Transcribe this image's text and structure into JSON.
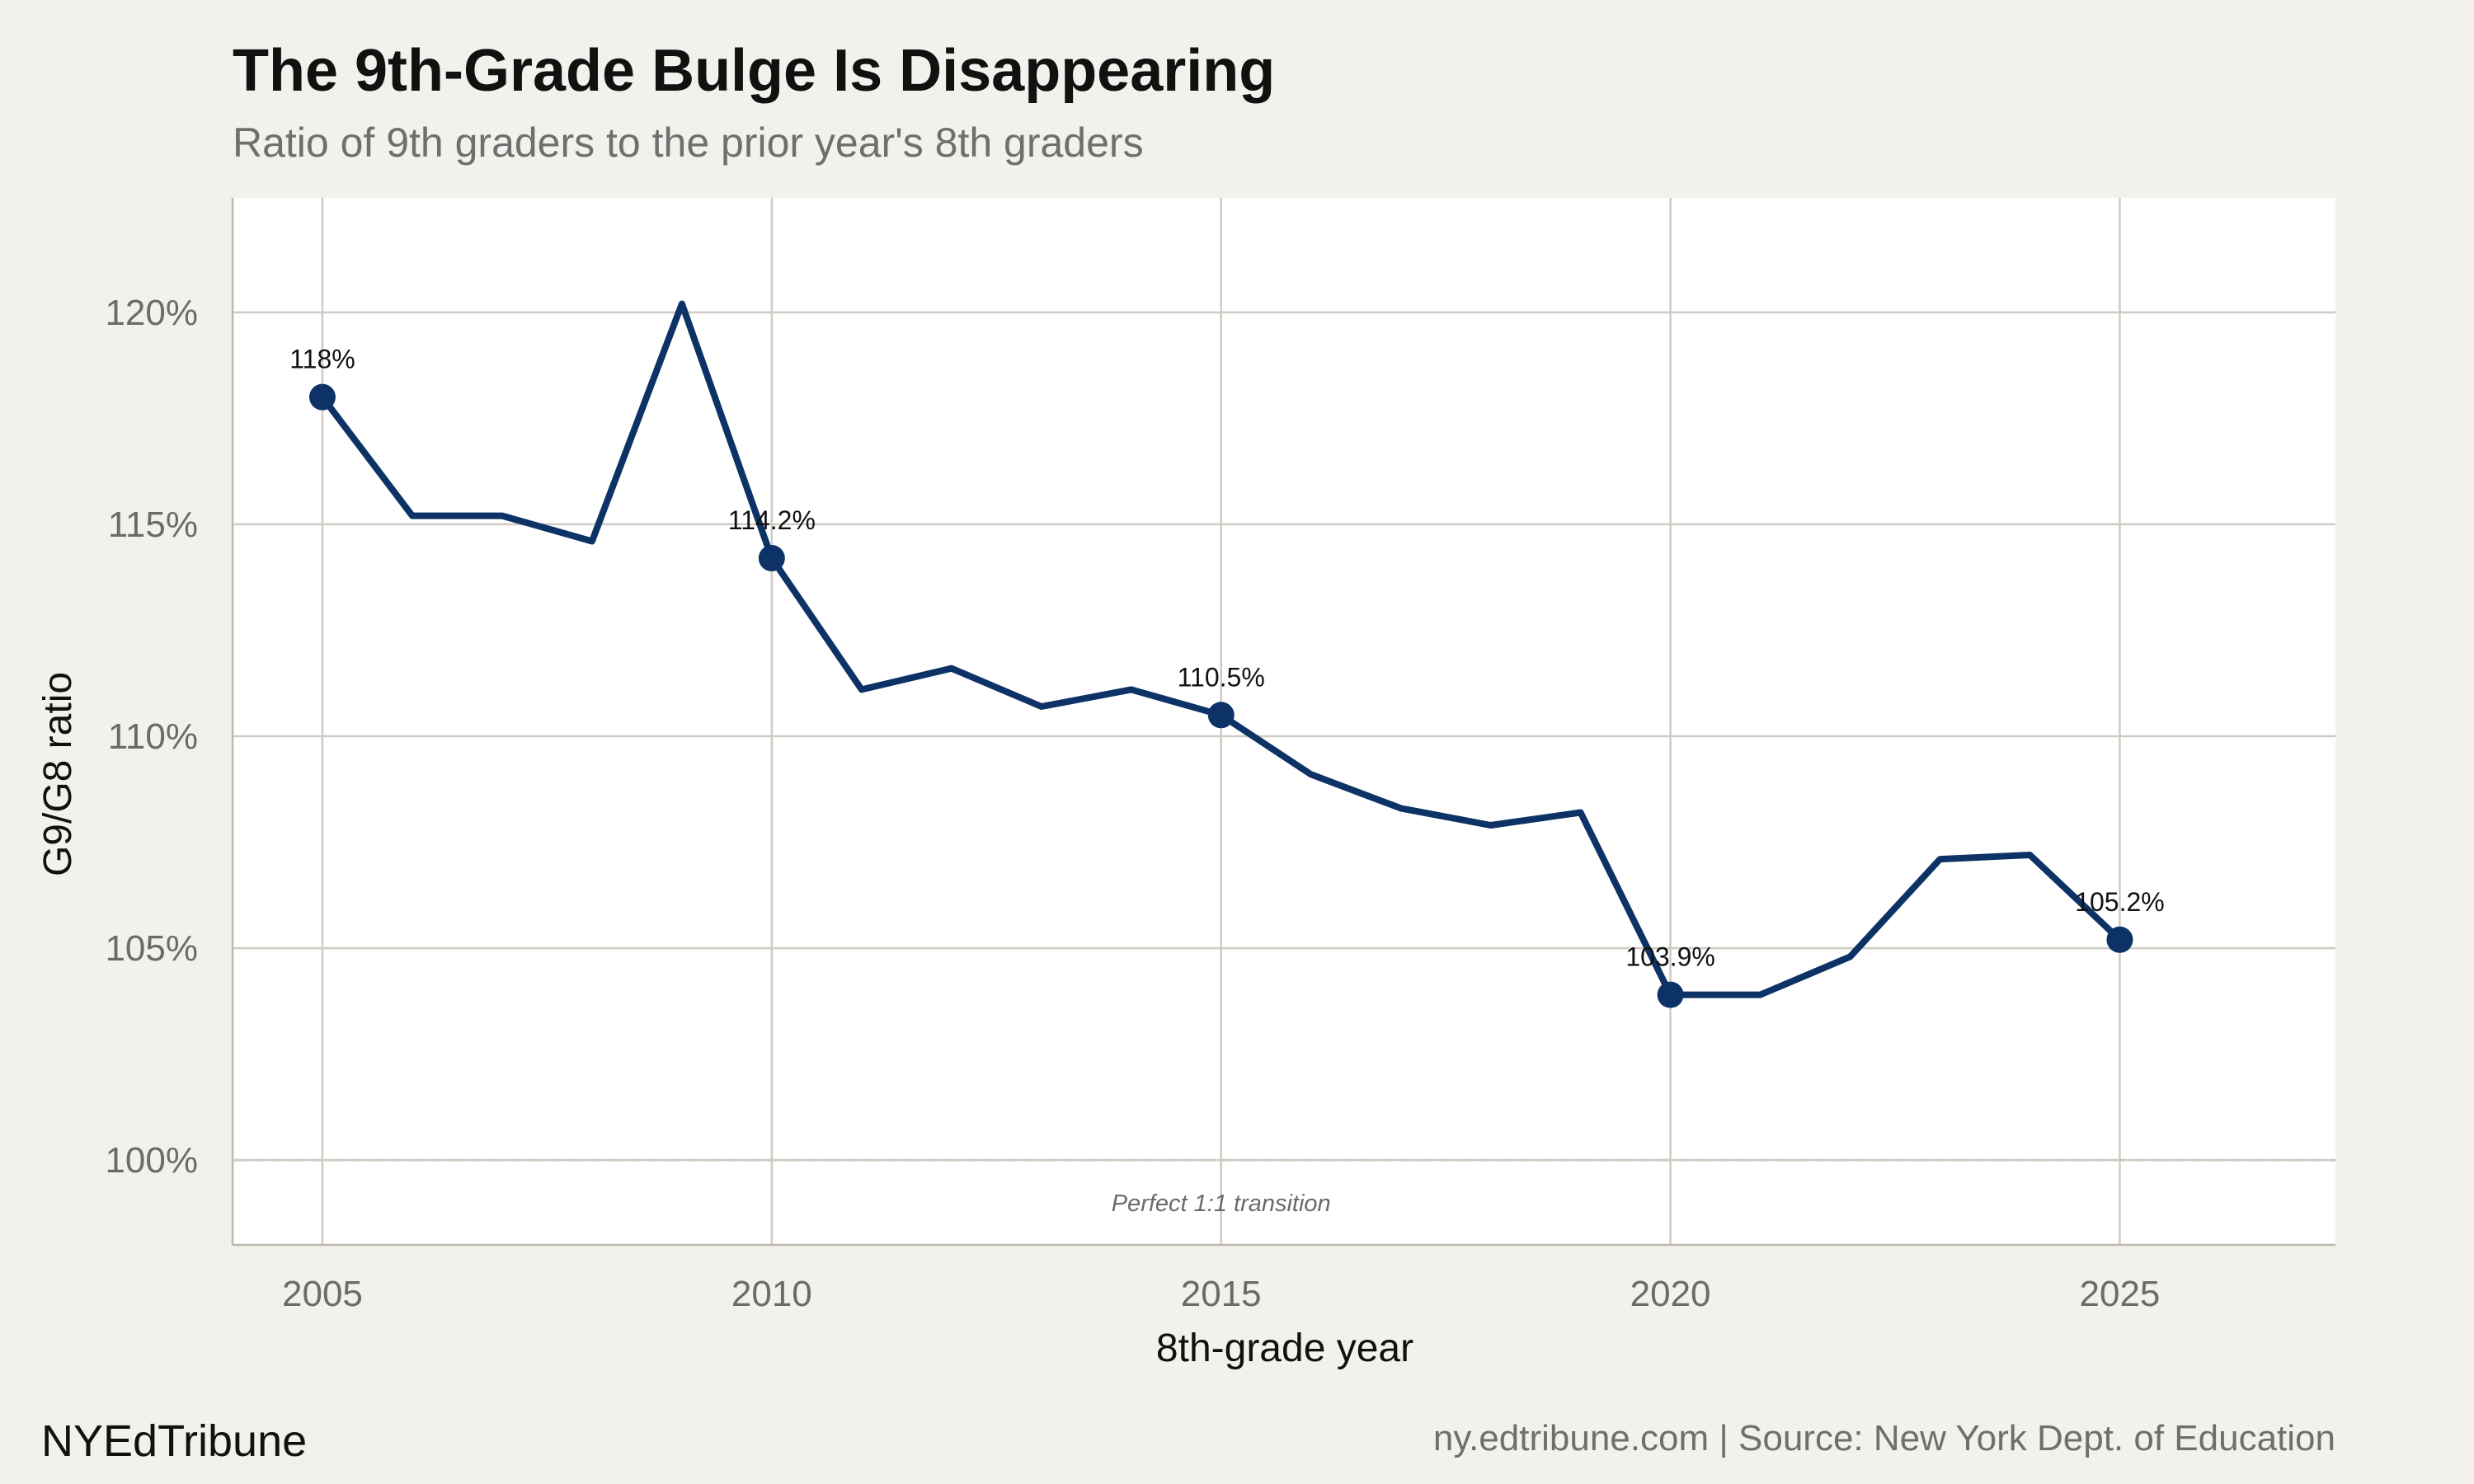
{
  "title": "The 9th-Grade Bulge Is Disappearing",
  "subtitle": "Ratio of 9th graders to the prior year's 8th graders",
  "footer": {
    "brand": "NYEdTribune",
    "source": "ny.edtribune.com | Source: New York Dept. of Education"
  },
  "colors": {
    "line": "#0d3366",
    "grid": "#cfcbc2",
    "panel": "#ffffff",
    "background": "#f3f1ec",
    "reference": "#cfc9bd"
  },
  "chart_data": {
    "type": "line",
    "title": "The 9th-Grade Bulge Is Disappearing",
    "subtitle": "Ratio of 9th graders to the prior year's 8th graders",
    "xlabel": "8th-grade year",
    "ylabel": "G9/G8 ratio",
    "xlim": [
      2004,
      2027.4
    ],
    "ylim": [
      98,
      122.7
    ],
    "x_ticks": [
      2005,
      2010,
      2015,
      2020,
      2025
    ],
    "x_tick_labels": [
      "2005",
      "2010",
      "2015",
      "2020",
      "2025"
    ],
    "y_ticks": [
      100,
      105,
      110,
      115,
      120
    ],
    "y_tick_labels": [
      "100%",
      "105%",
      "110%",
      "115%",
      "120%"
    ],
    "grid": true,
    "series": [
      {
        "x": [
          2005,
          2006,
          2007,
          2008,
          2009,
          2010,
          2011,
          2012,
          2013,
          2014,
          2015,
          2016,
          2017,
          2018,
          2019,
          2020,
          2021,
          2022,
          2023,
          2024,
          2025
        ],
        "values": [
          118.0,
          115.2,
          115.2,
          114.6,
          120.2,
          114.2,
          111.1,
          111.6,
          110.7,
          111.1,
          110.5,
          109.1,
          108.3,
          107.9,
          108.2,
          103.9,
          103.9,
          104.8,
          107.1,
          107.2,
          105.2
        ]
      }
    ],
    "highlighted_points": [
      {
        "x": 2005,
        "y": 118.0,
        "label": "118%"
      },
      {
        "x": 2010,
        "y": 114.2,
        "label": "114.2%"
      },
      {
        "x": 2015,
        "y": 110.5,
        "label": "110.5%"
      },
      {
        "x": 2020,
        "y": 103.9,
        "label": "103.9%"
      },
      {
        "x": 2025,
        "y": 105.2,
        "label": "105.2%"
      }
    ],
    "reference_line": {
      "y": 100,
      "style": "dashed",
      "label": "Perfect 1:1 transition",
      "label_x": 2015
    }
  }
}
